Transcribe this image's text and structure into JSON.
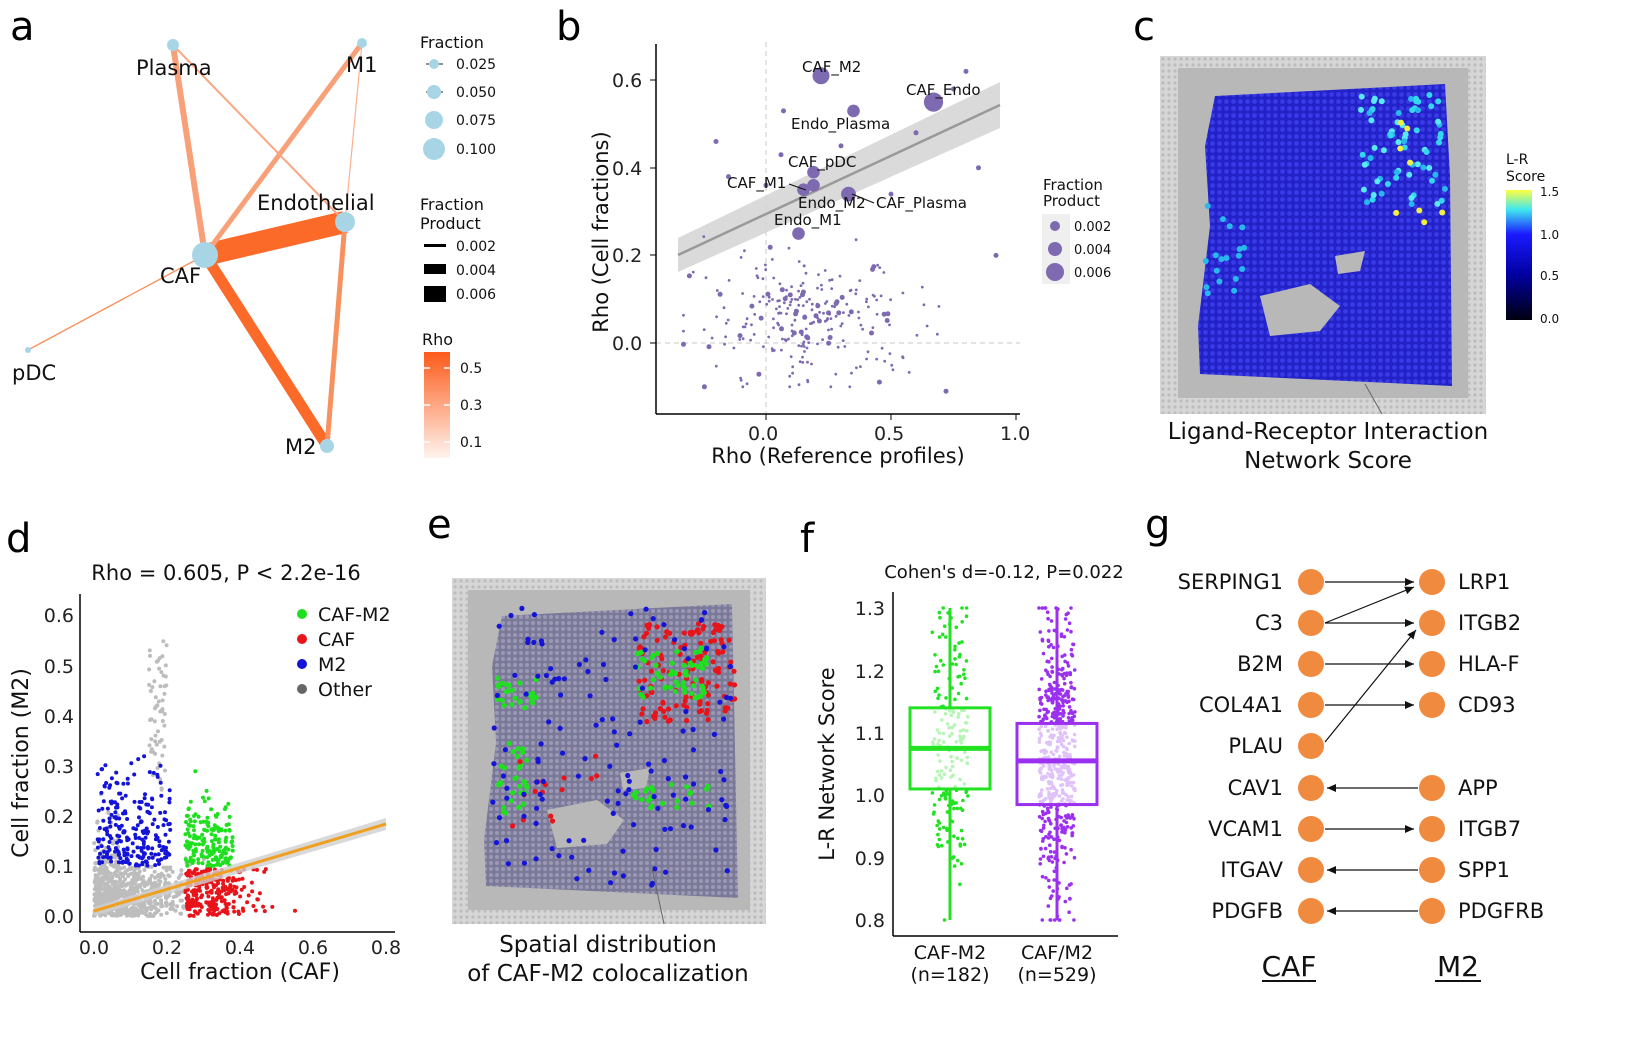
{
  "panels": {
    "a": {
      "label": "a",
      "nodes": [
        "Plasma",
        "M1",
        "Endothelial",
        "CAF",
        "pDC",
        "M2"
      ],
      "legend_fraction": {
        "title": "Fraction",
        "values": [
          "0.025",
          "0.050",
          "0.075",
          "0.100"
        ]
      },
      "legend_product": {
        "title_line1": "Fraction",
        "title_line2": "Product",
        "values": [
          "0.002",
          "0.004",
          "0.006"
        ]
      },
      "legend_rho": {
        "title": "Rho",
        "values": [
          "0.5",
          "0.3",
          "0.1"
        ]
      }
    },
    "b": {
      "label": "b",
      "xlabel": "Rho (Reference profiles)",
      "ylabel": "Rho (Cell fractions)",
      "xticks": [
        "0.0",
        "0.5",
        "1.0"
      ],
      "yticks": [
        "0.0",
        "0.2",
        "0.4",
        "0.6"
      ],
      "point_labels": [
        "CAF_M2",
        "CAF_Endo",
        "Endo_Plasma",
        "CAF_pDC",
        "CAF_M1",
        "Endo_M2",
        "CAF_Plasma",
        "Endo_M1"
      ],
      "legend": {
        "title_line1": "Fraction",
        "title_line2": "Product",
        "values": [
          "0.002",
          "0.004",
          "0.006"
        ]
      }
    },
    "c": {
      "label": "c",
      "caption_line1": "Ligand-Receptor Interaction",
      "caption_line2": "Network Score",
      "colorbar": {
        "title_line1": "L-R",
        "title_line2": "Score",
        "values": [
          "1.5",
          "1.0",
          "0.5",
          "0.0"
        ]
      }
    },
    "d": {
      "label": "d",
      "title": "Rho = 0.605, P  < 2.2e-16",
      "xlabel": "Cell fraction (CAF)",
      "ylabel": "Cell fraction (M2)",
      "xticks": [
        "0.0",
        "0.2",
        "0.4",
        "0.6",
        "0.8"
      ],
      "yticks": [
        "0.0",
        "0.1",
        "0.2",
        "0.3",
        "0.4",
        "0.5",
        "0.6"
      ],
      "legend": [
        "CAF-M2",
        "CAF",
        "M2",
        "Other"
      ]
    },
    "e": {
      "label": "e",
      "caption_line1": "Spatial distribution",
      "caption_line2": "of CAF-M2 colocalization"
    },
    "f": {
      "label": "f",
      "title": "Cohen's d=-0.12, P=0.022",
      "ylabel": "L-R Network Score",
      "yticks": [
        "0.8",
        "0.9",
        "1.0",
        "1.1",
        "1.2",
        "1.3"
      ],
      "groups": [
        {
          "name": "CAF-M2",
          "n": "(n=182)"
        },
        {
          "name": "CAF/M2",
          "n": "(n=529)"
        }
      ]
    },
    "g": {
      "label": "g",
      "left_genes": [
        "SERPING1",
        "C3",
        "B2M",
        "COL4A1",
        "PLAU",
        "CAV1",
        "VCAM1",
        "ITGAV",
        "PDGFB"
      ],
      "right_genes": [
        "LRP1",
        "ITGB2",
        "HLA-F",
        "CD93",
        "APP",
        "ITGB7",
        "SPP1",
        "PDGFRB"
      ],
      "left_header": "CAF",
      "right_header": "M2"
    }
  },
  "chart_data": [
    {
      "type": "scatter",
      "title": "",
      "xlabel": "Rho (Reference profiles)",
      "ylabel": "Rho (Cell fractions)",
      "xlim": [
        -0.45,
        1.05
      ],
      "ylim": [
        -0.17,
        0.68
      ],
      "labeled_points": [
        {
          "name": "CAF_M2",
          "x": 0.22,
          "y": 0.61,
          "size": 0.005
        },
        {
          "name": "CAF_Endo",
          "x": 0.67,
          "y": 0.55,
          "size": 0.006
        },
        {
          "name": "Endo_Plasma",
          "x": 0.35,
          "y": 0.53,
          "size": 0.003
        },
        {
          "name": "CAF_pDC",
          "x": 0.19,
          "y": 0.39,
          "size": 0.003
        },
        {
          "name": "CAF_M1",
          "x": 0.15,
          "y": 0.35,
          "size": 0.003
        },
        {
          "name": "Endo_M2",
          "x": 0.19,
          "y": 0.36,
          "size": 0.003
        },
        {
          "name": "CAF_Plasma",
          "x": 0.33,
          "y": 0.34,
          "size": 0.004
        },
        {
          "name": "Endo_M1",
          "x": 0.13,
          "y": 0.25,
          "size": 0.003
        }
      ],
      "trend": {
        "x": [
          -0.35,
          0.95
        ],
        "y": [
          0.2,
          0.55
        ]
      }
    },
    {
      "type": "scatter",
      "title": "Rho = 0.605, P  < 2.2e-16",
      "xlabel": "Cell fraction (CAF)",
      "ylabel": "Cell fraction (M2)",
      "xlim": [
        -0.04,
        0.84
      ],
      "ylim": [
        -0.03,
        0.65
      ],
      "series": [
        "CAF-M2",
        "CAF",
        "M2",
        "Other"
      ],
      "trend": {
        "x": [
          0.0,
          0.8
        ],
        "y": [
          0.015,
          0.18
        ]
      }
    },
    {
      "type": "box",
      "title": "Cohen's d=-0.12, P=0.022",
      "ylabel": "L-R Network Score",
      "ylim": [
        0.78,
        1.31
      ],
      "categories": [
        "CAF-M2",
        "CAF/M2"
      ],
      "boxes": [
        {
          "min": 0.8,
          "q1": 1.01,
          "median": 1.075,
          "q3": 1.14,
          "max": 1.3
        },
        {
          "min": 0.8,
          "q1": 0.985,
          "median": 1.055,
          "q3": 1.115,
          "max": 1.3
        }
      ]
    }
  ],
  "colors": {
    "node": "#a8d5e6",
    "edge_strong": "#fc6a2a",
    "edge_weak": "#f8a078",
    "purple_point": "#7d6ab0",
    "green": "#1fe01f",
    "red": "#e8141a",
    "blue": "#1414d8",
    "grey": "#bdbdbd",
    "orange_line": "#f0a020",
    "gene_node": "#ef8a3f",
    "box_green": "#22e222",
    "box_purple": "#9b30f0"
  }
}
